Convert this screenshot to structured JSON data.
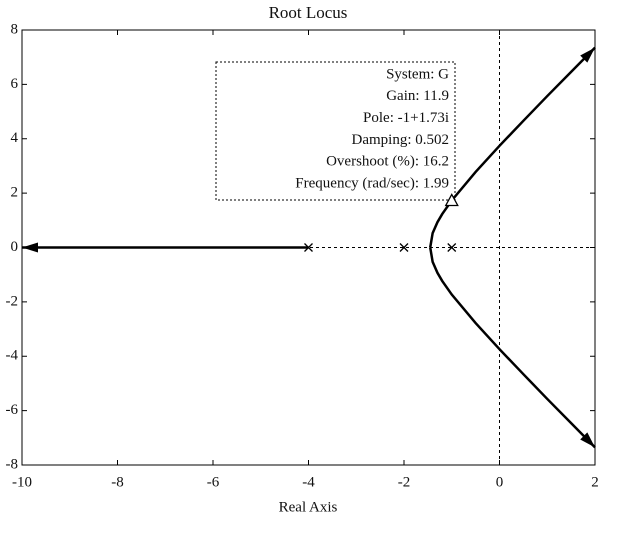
{
  "chart_data": {
    "type": "line",
    "title": "Root Locus",
    "x_label": "Real Axis",
    "xlim": [
      -10,
      2
    ],
    "ylim": [
      -8,
      8
    ],
    "xticks": [
      -10,
      -8,
      -6,
      -4,
      -2,
      0,
      2
    ],
    "yticks": [
      -8,
      -6,
      -4,
      -2,
      0,
      2,
      4,
      6,
      8
    ],
    "series": [
      {
        "color": "#000000",
        "x": [
          -1.451,
          -1.4,
          -1.3,
          -1.2,
          -1,
          -0.5,
          0,
          0.5,
          1,
          1.5,
          2
        ],
        "values": [
          0,
          0.53,
          0.93,
          1.23,
          1.73,
          2.78,
          3.74,
          4.66,
          5.57,
          6.46,
          7.35
        ]
      },
      {
        "color": "#000000",
        "x": [
          -1.451,
          -1.4,
          -1.3,
          -1.2,
          -1,
          -0.5,
          0,
          0.5,
          1,
          1.5,
          2
        ],
        "values": [
          0,
          -0.53,
          -0.93,
          -1.23,
          -1.73,
          -2.78,
          -3.74,
          -4.66,
          -5.57,
          -6.46,
          -7.35
        ]
      },
      {
        "color": "#000000",
        "x": [
          -4,
          -10
        ],
        "values": [
          0,
          0
        ]
      }
    ],
    "poles": {
      "x": [
        -4,
        -2,
        -1
      ],
      "values": [
        0,
        0,
        0
      ]
    },
    "selected_point": {
      "x": -1,
      "value": 1.73
    },
    "annotation": [
      "System: G",
      "Gain: 11.9",
      "Pole: -1+1.73i",
      "Damping: 0.502",
      "Overshoot (%): 16.2",
      "Frequency (rad/sec): 1.99"
    ]
  }
}
